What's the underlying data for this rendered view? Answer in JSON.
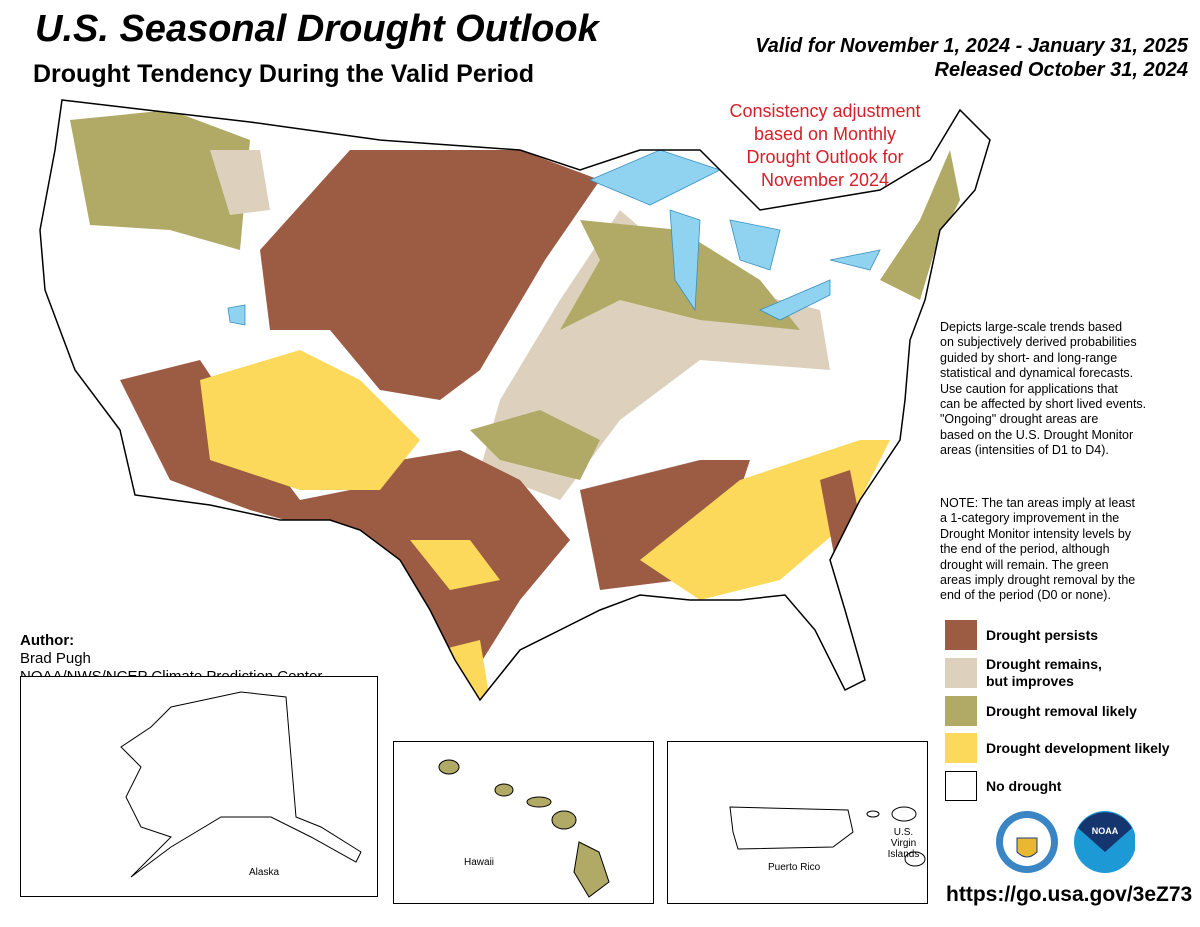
{
  "header": {
    "title": "U.S. Seasonal Drought Outlook",
    "subtitle": "Drought Tendency During the Valid Period",
    "valid": "Valid for November 1, 2024 - January 31, 2025",
    "released": "Released October 31, 2024"
  },
  "annotation": {
    "lines": [
      "Consistency adjustment",
      "based on Monthly",
      "Drought Outlook for",
      "November 2024"
    ],
    "color": "#d4202a"
  },
  "description": [
    "Depicts large-scale trends based",
    "on subjectively derived probabilities",
    "guided by short- and long-range",
    "statistical and dynamical forecasts.",
    "Use caution for applications that",
    "can be affected by short lived events.",
    "\"Ongoing\" drought areas are",
    "based on the U.S. Drought Monitor",
    "areas (intensities of D1 to D4)."
  ],
  "note": [
    "NOTE: The tan areas imply at least",
    "a 1-category improvement in the",
    "Drought Monitor intensity levels by",
    "the end of the period, although",
    "drought will remain. The green",
    "areas imply drought removal by the",
    "end of the period (D0 or none)."
  ],
  "legend": [
    {
      "lines": [
        "Drought persists"
      ],
      "color": "#9c5b43"
    },
    {
      "lines": [
        "Drought remains,",
        "but improves"
      ],
      "color": "#ddd1bd"
    },
    {
      "lines": [
        "Drought removal likely"
      ],
      "color": "#b0aa66"
    },
    {
      "lines": [
        "Drought development likely"
      ],
      "color": "#fcd95a"
    },
    {
      "lines": [
        "No drought"
      ],
      "color": "#ffffff"
    }
  ],
  "water_color": "#8fd3f0",
  "author": {
    "label": "Author:",
    "name": "Brad Pugh",
    "org": "NOAA/NWS/NCEP Climate Prediction Center"
  },
  "insets": {
    "alaska": "Alaska",
    "hawaii": "Hawaii",
    "puerto_rico": "Puerto Rico",
    "virgin_islands": [
      "U.S. Virgin",
      "Islands"
    ]
  },
  "logos": {
    "commerce": "Department of Commerce seal",
    "noaa": "NOAA"
  },
  "url": "https://go.usa.gov/3eZ73"
}
